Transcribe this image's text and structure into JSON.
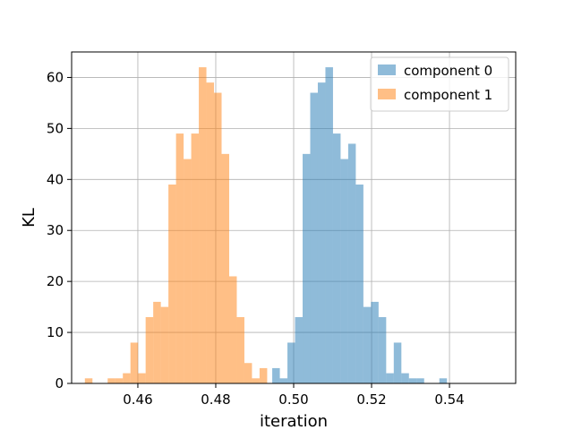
{
  "chart_data": {
    "type": "bar",
    "title": "",
    "xlabel": "iteration",
    "ylabel": "KL",
    "xlim": [
      0.443,
      0.557
    ],
    "ylim": [
      0,
      65
    ],
    "xticks": [
      "0.46",
      "0.48",
      "0.50",
      "0.52",
      "0.54"
    ],
    "yticks": [
      "0",
      "10",
      "20",
      "30",
      "40",
      "50",
      "60"
    ],
    "grid": true,
    "legend_position": "top-right",
    "series": [
      {
        "name": "component 0",
        "color": "#1f77b4",
        "opacity": 0.5,
        "bin_start": 0.4945,
        "bin_width": 0.00195,
        "counts": [
          3,
          1,
          8,
          13,
          45,
          57,
          59,
          62,
          49,
          44,
          47,
          39,
          15,
          16,
          13,
          2,
          8,
          2,
          1,
          1,
          0,
          0,
          1
        ]
      },
      {
        "name": "component 1",
        "color": "#ff7f0e",
        "opacity": 0.5,
        "bin_start": 0.4464,
        "bin_width": 0.00195,
        "counts": [
          1,
          0,
          0,
          1,
          1,
          2,
          8,
          2,
          13,
          16,
          15,
          39,
          49,
          44,
          49,
          62,
          59,
          57,
          45,
          21,
          13,
          4,
          1,
          3
        ]
      }
    ]
  }
}
